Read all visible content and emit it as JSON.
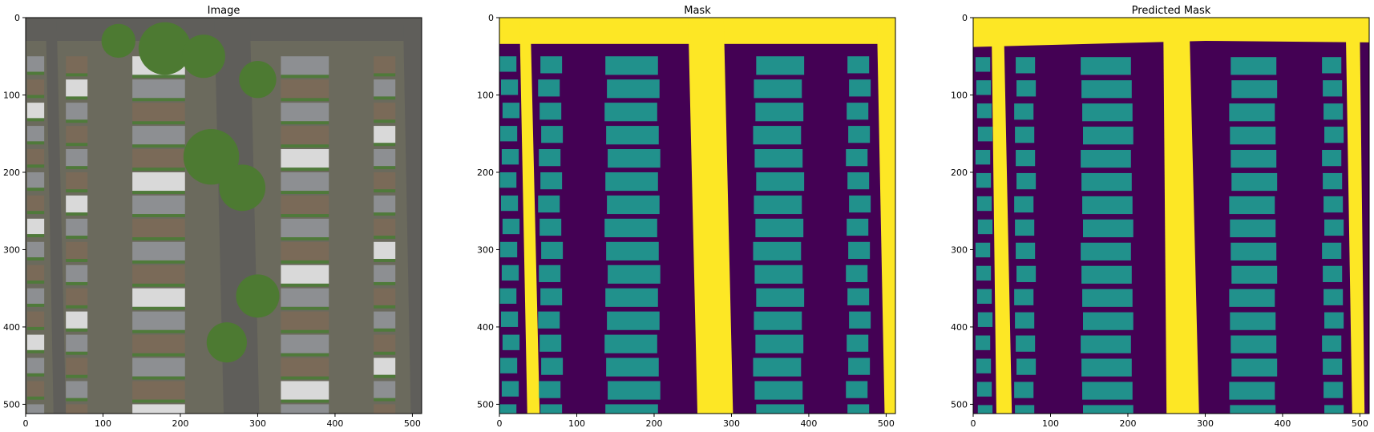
{
  "figure": {
    "panels": [
      {
        "title": "Image",
        "kind": "aerial-photo"
      },
      {
        "title": "Mask",
        "kind": "segmentation-mask"
      },
      {
        "title": "Predicted Mask",
        "kind": "segmentation-mask"
      }
    ]
  },
  "colors": {
    "mask_road": "#fde725",
    "mask_building": "#21918c",
    "mask_background": "#440154",
    "aerial_ground": "#6b6a5d",
    "aerial_tree": "#4d7a32",
    "aerial_grass": "#4f7a3a",
    "aerial_roof_gray": "#8d8f92",
    "aerial_roof_white": "#d9d9d9",
    "aerial_roof_brown": "#7a6a58",
    "aerial_street": "#5f5e5a"
  },
  "chart_data": [
    {
      "type": "heatmap",
      "title": "Image",
      "xlabel": "",
      "ylabel": "",
      "xlim": [
        0,
        512
      ],
      "ylim": [
        512,
        0
      ],
      "xticks": [
        "0",
        "100",
        "200",
        "300",
        "400",
        "500"
      ],
      "yticks": [
        "0",
        "100",
        "200",
        "300",
        "400",
        "500"
      ],
      "xtick_values": [
        0,
        100,
        200,
        300,
        400,
        500
      ],
      "ytick_values": [
        0,
        100,
        200,
        300,
        400,
        500
      ]
    },
    {
      "type": "heatmap",
      "title": "Mask",
      "xlabel": "",
      "ylabel": "",
      "xlim": [
        0,
        512
      ],
      "ylim": [
        512,
        0
      ],
      "xticks": [
        "0",
        "100",
        "200",
        "300",
        "400",
        "500"
      ],
      "yticks": [
        "0",
        "100",
        "200",
        "300",
        "400",
        "500"
      ],
      "xtick_values": [
        0,
        100,
        200,
        300,
        400,
        500
      ],
      "ytick_values": [
        0,
        100,
        200,
        300,
        400,
        500
      ],
      "classes": [
        "background",
        "building",
        "road"
      ]
    },
    {
      "type": "heatmap",
      "title": "Predicted Mask",
      "xlabel": "",
      "ylabel": "",
      "xlim": [
        0,
        512
      ],
      "ylim": [
        512,
        0
      ],
      "xticks": [
        "0",
        "100",
        "200",
        "300",
        "400",
        "500"
      ],
      "yticks": [
        "0",
        "100",
        "200",
        "300",
        "400",
        "500"
      ],
      "xtick_values": [
        0,
        100,
        200,
        300,
        400,
        500
      ],
      "ytick_values": [
        0,
        100,
        200,
        300,
        400,
        500
      ],
      "classes": [
        "background",
        "building",
        "road"
      ]
    }
  ]
}
